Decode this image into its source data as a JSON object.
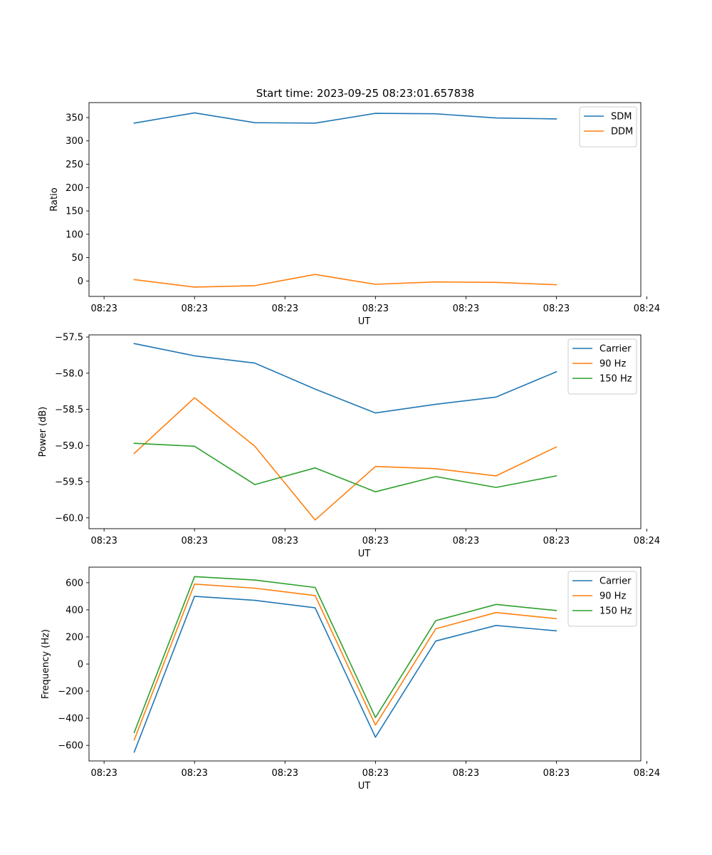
{
  "figure": {
    "title": "Start time: 2023-09-25 08:23:01.657838"
  },
  "chart_data": [
    {
      "type": "line",
      "title": "Start time: 2023-09-25 08:23:01.657838",
      "xlabel": "UT",
      "ylabel": "Ratio",
      "x": [
        1,
        2,
        3,
        4,
        5,
        6,
        7,
        8
      ],
      "xlim": [
        0.25,
        9.4
      ],
      "xticks": [
        0.5,
        2,
        3.5,
        5,
        6.5,
        8,
        9.5
      ],
      "xtick_labels": [
        "08:23",
        "08:23",
        "08:23",
        "08:23",
        "08:23",
        "08:23",
        "08:24"
      ],
      "ylim": [
        -33,
        382
      ],
      "yticks": [
        0,
        50,
        100,
        150,
        200,
        250,
        300,
        350
      ],
      "ytick_labels": [
        "0",
        "50",
        "100",
        "150",
        "200",
        "250",
        "300",
        "350"
      ],
      "legend": "top-right",
      "series": [
        {
          "name": "SDM",
          "color": "#1f77b4",
          "values": [
            338,
            360,
            339,
            338,
            359,
            358,
            349,
            347
          ]
        },
        {
          "name": "DDM",
          "color": "#ff7f0e",
          "values": [
            3,
            -13,
            -10,
            14,
            -7,
            -2,
            -3,
            -8
          ]
        }
      ]
    },
    {
      "type": "line",
      "xlabel": "UT",
      "ylabel": "Power (dB)",
      "x": [
        1,
        2,
        3,
        4,
        5,
        6,
        7,
        8
      ],
      "xlim": [
        0.25,
        9.4
      ],
      "xticks": [
        0.5,
        2,
        3.5,
        5,
        6.5,
        8,
        9.5
      ],
      "xtick_labels": [
        "08:23",
        "08:23",
        "08:23",
        "08:23",
        "08:23",
        "08:23",
        "08:24"
      ],
      "ylim": [
        -60.15,
        -57.47
      ],
      "yticks": [
        -60.0,
        -59.5,
        -59.0,
        -58.5,
        -58.0,
        -57.5
      ],
      "ytick_labels": [
        "−60.0",
        "−59.5",
        "−59.0",
        "−58.5",
        "−58.0",
        "−57.5"
      ],
      "legend": "top-right",
      "series": [
        {
          "name": "Carrier",
          "color": "#1f77b4",
          "values": [
            -57.59,
            -57.76,
            -57.86,
            -58.22,
            -58.55,
            -58.43,
            -58.33,
            -57.98
          ]
        },
        {
          "name": "90 Hz",
          "color": "#ff7f0e",
          "values": [
            -59.11,
            -58.34,
            -59.01,
            -60.03,
            -59.29,
            -59.32,
            -59.42,
            -59.02
          ]
        },
        {
          "name": "150 Hz",
          "color": "#2ca02c",
          "values": [
            -58.97,
            -59.01,
            -59.54,
            -59.31,
            -59.64,
            -59.43,
            -59.58,
            -59.42
          ]
        }
      ]
    },
    {
      "type": "line",
      "xlabel": "UT",
      "ylabel": "Frequency (Hz)",
      "x": [
        1,
        2,
        3,
        4,
        5,
        6,
        7,
        8
      ],
      "xlim": [
        0.25,
        9.4
      ],
      "xticks": [
        0.5,
        2,
        3.5,
        5,
        6.5,
        8,
        9.5
      ],
      "xtick_labels": [
        "08:23",
        "08:23",
        "08:23",
        "08:23",
        "08:23",
        "08:23",
        "08:24"
      ],
      "ylim": [
        -715,
        715
      ],
      "yticks": [
        -600,
        -400,
        -200,
        0,
        200,
        400,
        600
      ],
      "ytick_labels": [
        "−600",
        "−400",
        "−200",
        "0",
        "200",
        "400",
        "600"
      ],
      "legend": "top-right",
      "series": [
        {
          "name": "Carrier",
          "color": "#1f77b4",
          "values": [
            -650,
            500,
            470,
            415,
            -540,
            170,
            285,
            245
          ]
        },
        {
          "name": "90 Hz",
          "color": "#ff7f0e",
          "values": [
            -560,
            590,
            560,
            505,
            -450,
            260,
            380,
            335
          ]
        },
        {
          "name": "150 Hz",
          "color": "#2ca02c",
          "values": [
            -505,
            645,
            620,
            565,
            -395,
            320,
            440,
            395
          ]
        }
      ]
    }
  ]
}
